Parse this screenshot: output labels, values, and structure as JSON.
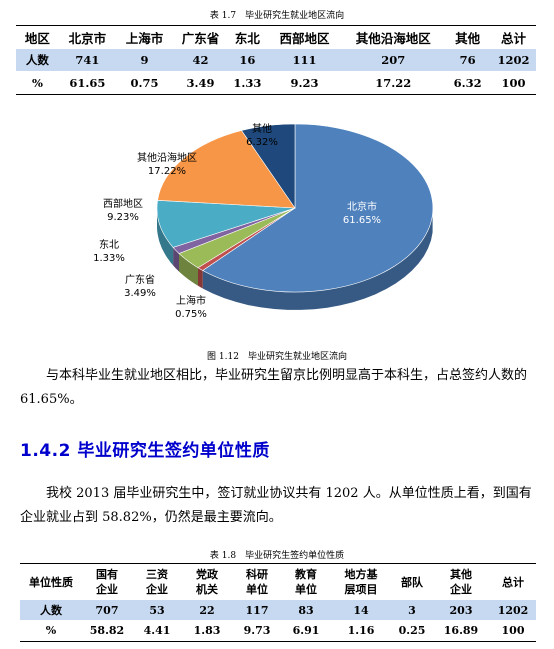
{
  "table1": {
    "caption": "表 1.7　毕业研究生就业地区流向",
    "headers": [
      "地区",
      "北京市",
      "上海市",
      "广东省",
      "东北",
      "西部地区",
      "其他沿海地区",
      "其他",
      "总计"
    ],
    "rows": [
      [
        "人数",
        "741",
        "9",
        "42",
        "16",
        "111",
        "207",
        "76",
        "1202"
      ],
      [
        "%",
        "61.65",
        "0.75",
        "3.49",
        "1.33",
        "9.23",
        "17.22",
        "6.32",
        "100"
      ]
    ]
  },
  "chart_data": {
    "type": "pie",
    "title": "",
    "slices": [
      {
        "label": "北京市",
        "value": 61.65,
        "value_label": "61.65%",
        "color": "#4f81bd"
      },
      {
        "label": "上海市",
        "value": 0.75,
        "value_label": "0.75%",
        "color": "#c0504d"
      },
      {
        "label": "广东省",
        "value": 3.49,
        "value_label": "3.49%",
        "color": "#9bbb59"
      },
      {
        "label": "东北",
        "value": 1.33,
        "value_label": "1.33%",
        "color": "#8064a2"
      },
      {
        "label": "西部地区",
        "value": 9.23,
        "value_label": "9.23%",
        "color": "#4bacc6"
      },
      {
        "label": "其他沿海地区",
        "value": 17.22,
        "value_label": "17.22%",
        "color": "#f79646"
      },
      {
        "label": "其他",
        "value": 6.32,
        "value_label": "6.32%",
        "color": "#1f497d"
      }
    ],
    "legend": "none"
  },
  "figure_caption": "图 1.12　毕业研究生就业地区流向",
  "paragraph1": "与本科毕业生就业地区相比，毕业研究生留京比例明显高于本科生，占总签约人数的 61.65%。",
  "section_title": "1.4.2 毕业研究生签约单位性质",
  "paragraph2": "我校 2013 届毕业研究生中，签订就业协议共有 1202 人。从单位性质上看，到国有企业就业占到 58.82%，仍然是最主要流向。",
  "table2": {
    "caption": "表 1.8　毕业研究生签约单位性质",
    "headers": [
      [
        "单位性质"
      ],
      [
        "国有",
        "企业"
      ],
      [
        "三资",
        "企业"
      ],
      [
        "党政",
        "机关"
      ],
      [
        "科研",
        "单位"
      ],
      [
        "教育",
        "单位"
      ],
      [
        "地方基",
        "层项目"
      ],
      [
        "部队"
      ],
      [
        "其他",
        "企业"
      ],
      [
        "总计"
      ]
    ],
    "rows": [
      [
        "人数",
        "707",
        "53",
        "22",
        "117",
        "83",
        "14",
        "3",
        "203",
        "1202"
      ],
      [
        "%",
        "58.82",
        "4.41",
        "1.83",
        "9.73",
        "6.91",
        "1.16",
        "0.25",
        "16.89",
        "100"
      ]
    ]
  }
}
